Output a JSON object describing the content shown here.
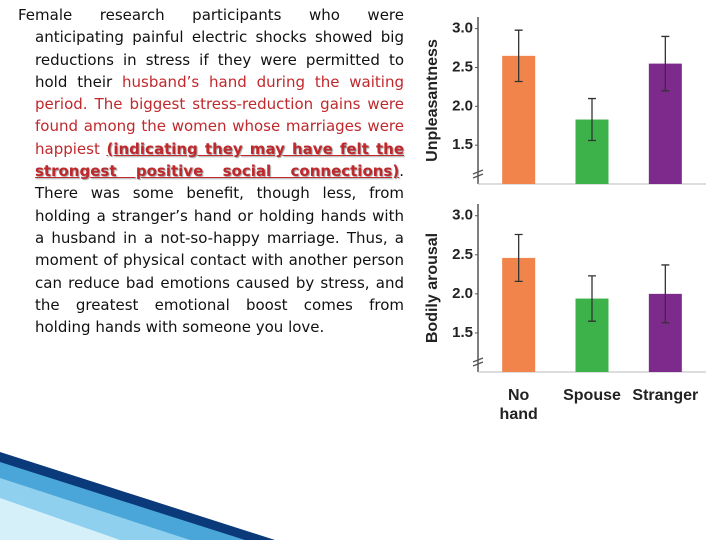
{
  "text": {
    "segments": [
      "Female research participants who were anticipating painful electric shocks showed big reductions in stress if they were permitted to hold their",
      "husband’s hand during the waiting period. The biggest stress-reduction gains were found among the women whose marriages were happiest",
      "(indicating they may have felt the strongest positive social connections)",
      ". There was some benefit, though less, from holding a stranger’s hand or holding hands with a husband in a not-so-happy marriage. Thus, a moment of physical contact with another person can reduce bad emotions caused by stress, and the greatest emotional boost comes from holding hands with someone you love."
    ]
  },
  "chart_data": [
    {
      "type": "bar",
      "y_label": "Unpleasantness",
      "values": [
        2.65,
        1.83,
        2.55
      ],
      "errors": [
        0.33,
        0.27,
        0.35
      ],
      "colors": [
        "#f0844a",
        "#3db24b",
        "#7d2a8c"
      ],
      "ylim": [
        1.0,
        3.15
      ],
      "yticks": [
        1.5,
        {
          "value": 2,
          "label": "2.0"
        },
        2.5,
        {
          "value": 3,
          "label": "3.0"
        }
      ]
    },
    {
      "type": "bar",
      "y_label": "Bodily arousal",
      "categories": [
        "No hand",
        "Spouse",
        "Stranger"
      ],
      "values": [
        2.46,
        1.94,
        2.0
      ],
      "errors": [
        0.3,
        0.29,
        0.37
      ],
      "colors": [
        "#f0844a",
        "#3db24b",
        "#7d2a8c"
      ],
      "ylim": [
        1.0,
        3.15
      ],
      "yticks": [
        1.5,
        {
          "value": 2,
          "label": "2.0"
        },
        2.5,
        {
          "value": 3,
          "label": "3.0"
        }
      ]
    }
  ]
}
